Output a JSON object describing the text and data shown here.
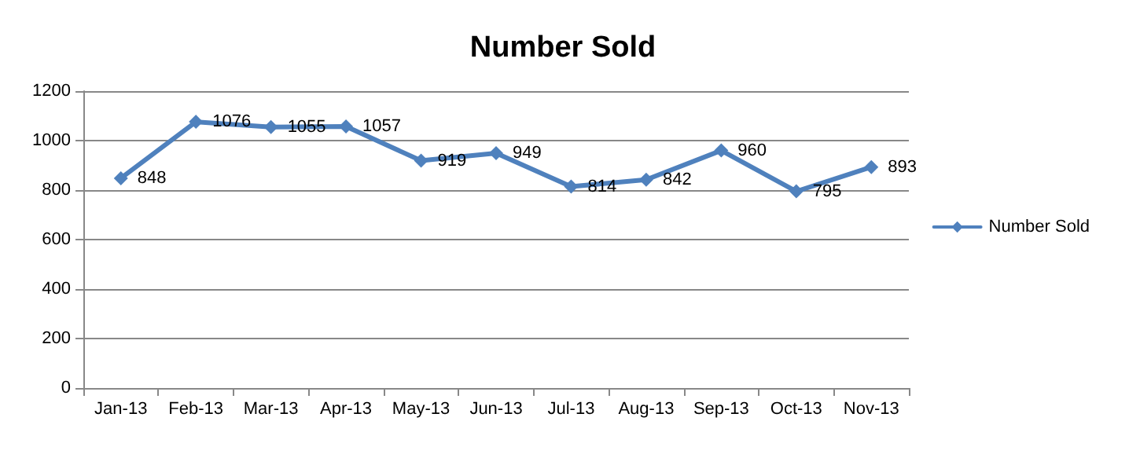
{
  "chart_data": {
    "type": "line",
    "title": "Number Sold",
    "categories": [
      "Jan-13",
      "Feb-13",
      "Mar-13",
      "Apr-13",
      "May-13",
      "Jun-13",
      "Jul-13",
      "Aug-13",
      "Sep-13",
      "Oct-13",
      "Nov-13"
    ],
    "series": [
      {
        "name": "Number Sold",
        "color": "#4f81bd",
        "values": [
          848,
          1076,
          1055,
          1057,
          919,
          949,
          814,
          842,
          960,
          795,
          893
        ]
      }
    ],
    "ylim": [
      0,
      1200
    ],
    "yticks": [
      0,
      200,
      400,
      600,
      800,
      1000,
      1200
    ],
    "grid": "y",
    "legend": "right",
    "marker": "diamond",
    "line_style": "solid",
    "data_labels": true
  }
}
